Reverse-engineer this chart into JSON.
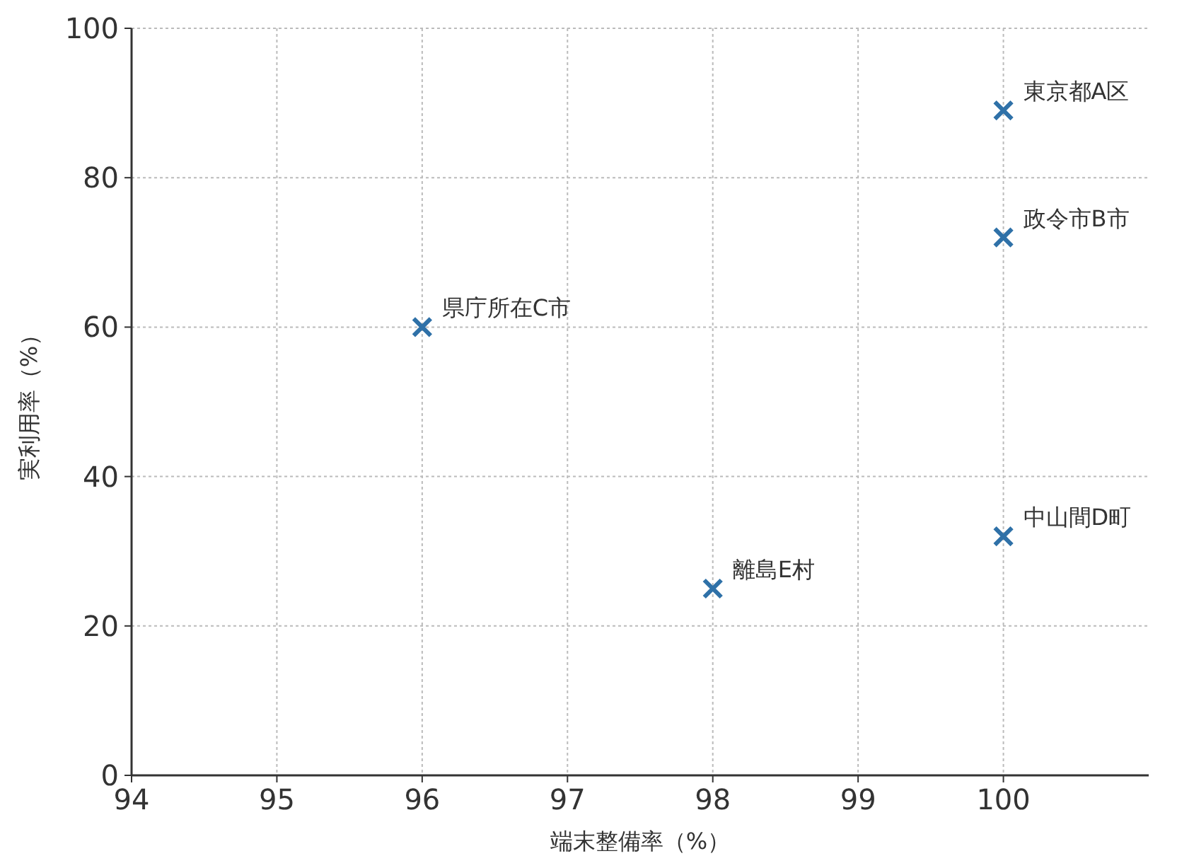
{
  "chart_data": {
    "type": "scatter",
    "xlabel": "端末整備率（%）",
    "ylabel": "実利用率（%）",
    "x": [
      100,
      100,
      96,
      100,
      98
    ],
    "values": [
      89,
      72,
      60,
      32,
      25
    ],
    "color": "#2f71a8",
    "marker": "cross",
    "grid": true,
    "xlim": [
      94,
      101
    ],
    "xticks": [
      94,
      95,
      96,
      97,
      98,
      99,
      100
    ],
    "ylim": [
      0,
      100
    ],
    "yticks": [
      0,
      20,
      40,
      60,
      80,
      100
    ],
    "annotations": [
      {
        "text": "東京都A区",
        "x": 100,
        "y": 89
      },
      {
        "text": "政令市B市",
        "x": 100,
        "y": 72
      },
      {
        "text": "県庁所在C市",
        "x": 96,
        "y": 60
      },
      {
        "text": "中山間D町",
        "x": 100,
        "y": 32
      },
      {
        "text": "離島E村",
        "x": 98,
        "y": 25
      }
    ]
  }
}
